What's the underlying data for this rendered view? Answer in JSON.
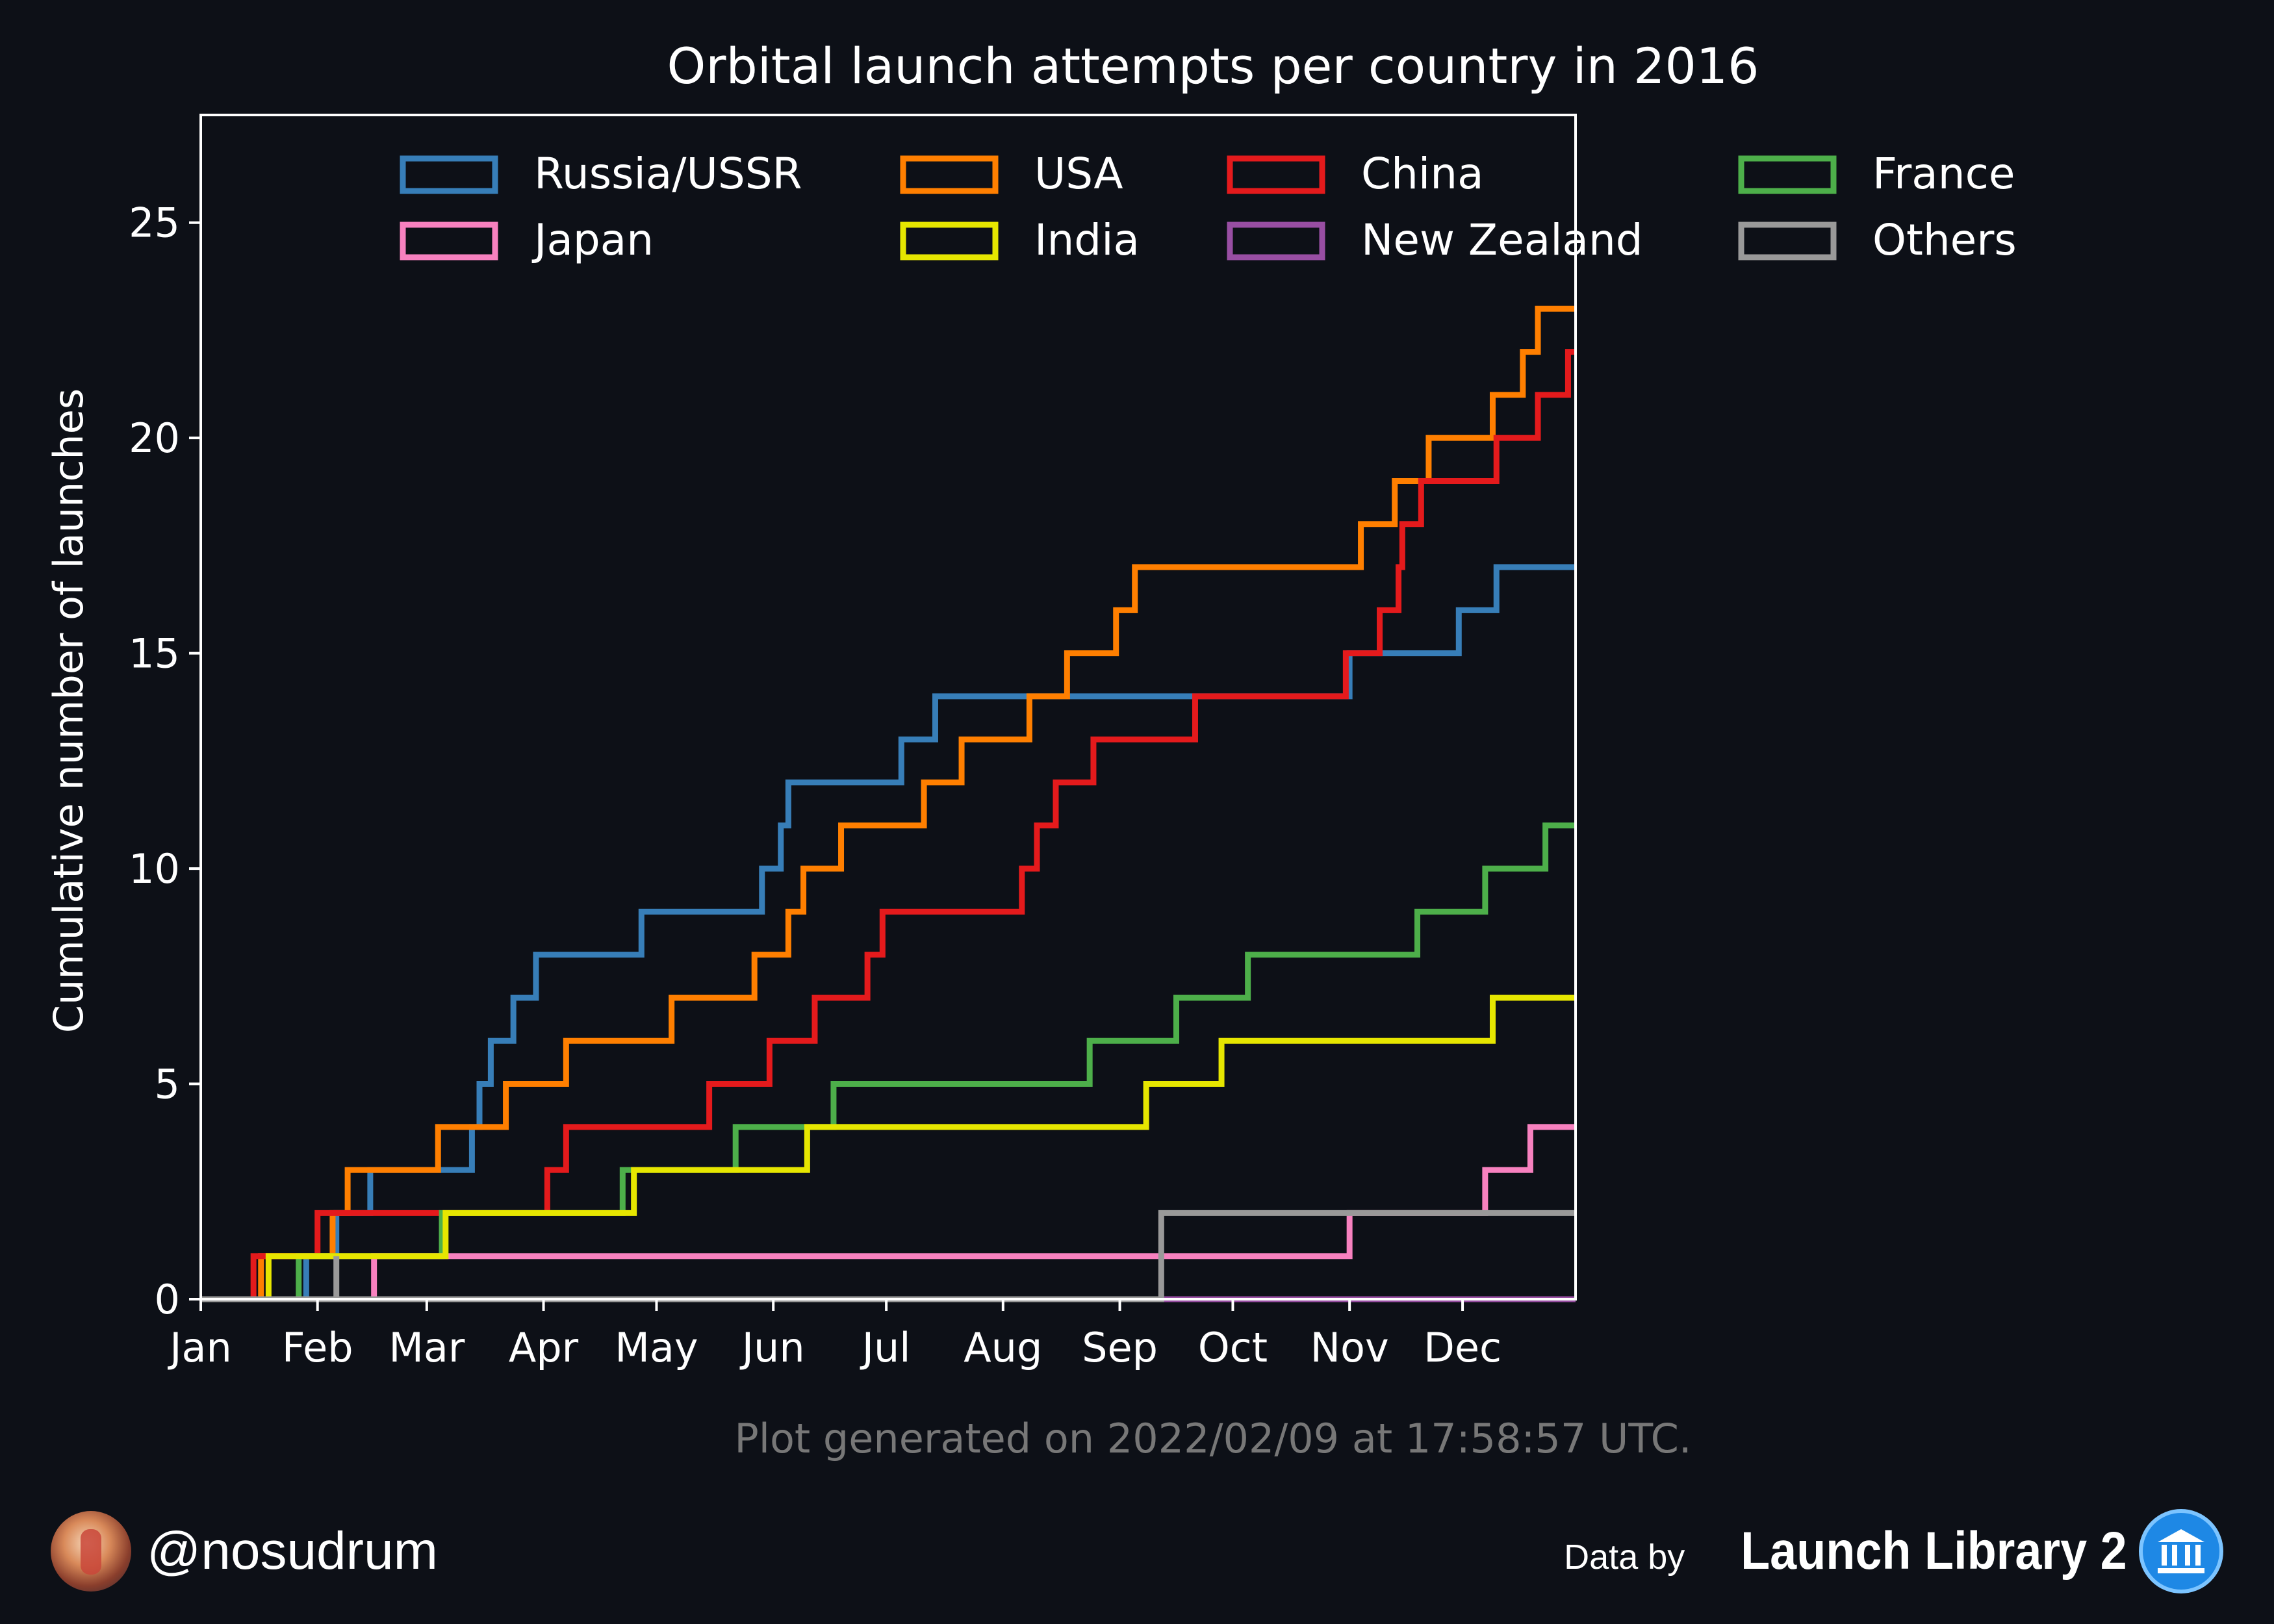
{
  "chart_data": {
    "type": "line",
    "step": "post",
    "title": "Orbital launch attempts per country in 2016",
    "ylabel": "Cumulative number of launches",
    "xlabel": "",
    "xlim": [
      1,
      366
    ],
    "ylim": [
      0,
      27.5
    ],
    "yticks": [
      0,
      5,
      10,
      15,
      20,
      25
    ],
    "xticks": [
      {
        "label": "Jan",
        "day": 1
      },
      {
        "label": "Feb",
        "day": 32
      },
      {
        "label": "Mar",
        "day": 61
      },
      {
        "label": "Apr",
        "day": 92
      },
      {
        "label": "May",
        "day": 122
      },
      {
        "label": "Jun",
        "day": 153
      },
      {
        "label": "Jul",
        "day": 183
      },
      {
        "label": "Aug",
        "day": 214
      },
      {
        "label": "Sep",
        "day": 245
      },
      {
        "label": "Oct",
        "day": 275
      },
      {
        "label": "Nov",
        "day": 306
      },
      {
        "label": "Dec",
        "day": 336
      }
    ],
    "legend_position": "top",
    "series": [
      {
        "name": "Russia/USSR",
        "color": "#377eb8",
        "steps": [
          [
            29,
            1
          ],
          [
            37,
            2
          ],
          [
            46,
            3
          ],
          [
            73,
            4
          ],
          [
            75,
            5
          ],
          [
            78,
            6
          ],
          [
            84,
            7
          ],
          [
            90,
            8
          ],
          [
            118,
            9
          ],
          [
            150,
            10
          ],
          [
            155,
            11
          ],
          [
            157,
            12
          ],
          [
            187,
            13
          ],
          [
            196,
            14
          ],
          [
            306,
            15
          ],
          [
            335,
            16
          ],
          [
            345,
            17
          ]
        ]
      },
      {
        "name": "USA",
        "color": "#ff7f00",
        "steps": [
          [
            17,
            1
          ],
          [
            36,
            2
          ],
          [
            40,
            3
          ],
          [
            64,
            4
          ],
          [
            82,
            5
          ],
          [
            98,
            6
          ],
          [
            126,
            7
          ],
          [
            148,
            8
          ],
          [
            157,
            9
          ],
          [
            161,
            10
          ],
          [
            171,
            11
          ],
          [
            193,
            12
          ],
          [
            203,
            13
          ],
          [
            221,
            14
          ],
          [
            231,
            15
          ],
          [
            244,
            16
          ],
          [
            249,
            17
          ],
          [
            309,
            18
          ],
          [
            318,
            19
          ],
          [
            327,
            20
          ],
          [
            344,
            21
          ],
          [
            352,
            22
          ],
          [
            356,
            23
          ]
        ]
      },
      {
        "name": "China",
        "color": "#e41a1c",
        "steps": [
          [
            15,
            1
          ],
          [
            32,
            2
          ],
          [
            93,
            3
          ],
          [
            98,
            4
          ],
          [
            136,
            5
          ],
          [
            152,
            6
          ],
          [
            164,
            7
          ],
          [
            178,
            8
          ],
          [
            182,
            9
          ],
          [
            219,
            10
          ],
          [
            223,
            11
          ],
          [
            228,
            12
          ],
          [
            238,
            13
          ],
          [
            265,
            14
          ],
          [
            305,
            15
          ],
          [
            314,
            16
          ],
          [
            319,
            17
          ],
          [
            320,
            18
          ],
          [
            325,
            19
          ],
          [
            345,
            20
          ],
          [
            356,
            21
          ],
          [
            364,
            22
          ]
        ]
      },
      {
        "name": "France",
        "color": "#4daf4a",
        "steps": [
          [
            27,
            1
          ],
          [
            65,
            2
          ],
          [
            113,
            3
          ],
          [
            143,
            4
          ],
          [
            169,
            5
          ],
          [
            237,
            6
          ],
          [
            260,
            7
          ],
          [
            279,
            8
          ],
          [
            324,
            9
          ],
          [
            342,
            10
          ],
          [
            358,
            11
          ]
        ]
      },
      {
        "name": "Japan",
        "color": "#f781bf",
        "steps": [
          [
            47,
            1
          ],
          [
            306,
            2
          ],
          [
            342,
            3
          ],
          [
            354,
            4
          ]
        ]
      },
      {
        "name": "India",
        "color": "#e6e600",
        "steps": [
          [
            19,
            1
          ],
          [
            66,
            2
          ],
          [
            116,
            3
          ],
          [
            162,
            4
          ],
          [
            252,
            5
          ],
          [
            272,
            6
          ],
          [
            344,
            7
          ]
        ]
      },
      {
        "name": "New Zealand",
        "color": "#984ea3",
        "steps": []
      },
      {
        "name": "Others",
        "color": "#999999",
        "steps": [
          [
            37,
            1
          ],
          [
            37,
            0
          ],
          [
            256,
            2
          ]
        ]
      }
    ]
  },
  "footer": {
    "generated": "Plot generated on 2022/02/09 at 17:58:57 UTC.",
    "handle": "@nosudrum",
    "data_by": "Data by",
    "source": "Launch Library 2"
  },
  "colors": {
    "background": "#0d1017",
    "footer_text": "#777777"
  }
}
